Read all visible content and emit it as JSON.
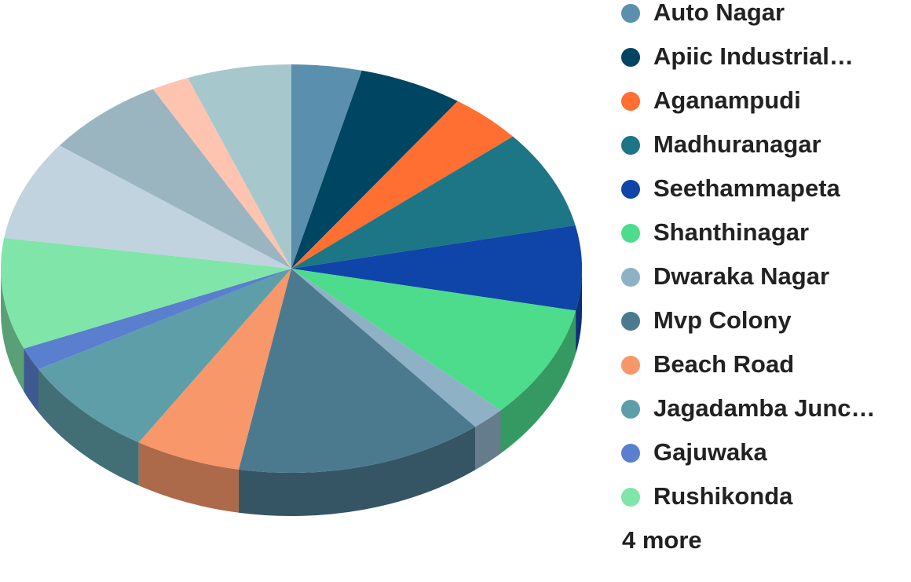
{
  "chart_data": {
    "type": "pie",
    "categories": [
      "Auto Nagar",
      "Apiic Industrial…",
      "Aganampudi",
      "Madhuranagar",
      "Seethammapeta",
      "Shanthinagar",
      "Dwaraka Nagar",
      "Mvp Colony",
      "Beach Road",
      "Jagadamba Junc…",
      "Gajuwaka",
      "Rushikonda",
      null,
      null,
      null,
      null
    ],
    "values": [
      3.9,
      5.8,
      4.1,
      7.8,
      6.7,
      8.9,
      1.9,
      13.8,
      5.9,
      8.0,
      1.8,
      8.8,
      7.9,
      6.8,
      2.1,
      5.8
    ],
    "colors": [
      "#5b8fae",
      "#004561",
      "#ff6f31",
      "#1c7685",
      "#0f45a8",
      "#4cdc8b",
      "#8fb1c6",
      "#4b7a8f",
      "#f7976a",
      "#5e9ea8",
      "#5a7fcf",
      "#7fe5a8",
      "#c0d3de",
      "#9bb5c0",
      "#ffc4b0",
      "#a6c8cc"
    ],
    "legend_more": "4 more"
  }
}
